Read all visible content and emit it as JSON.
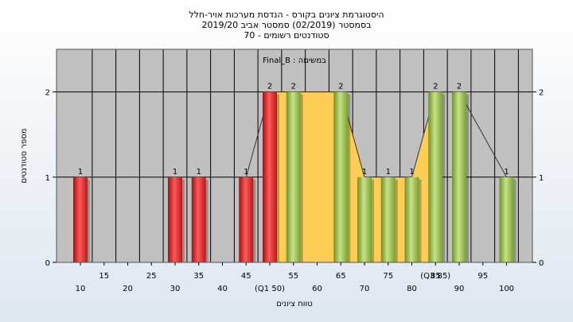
{
  "chart_data": {
    "type": "bar",
    "title_lines": [
      "היסטוגרמת ציונים בקורס - הנדסת מערכות אויר-חלל",
      "בסמסטר  (02/2019)  סמסטר אביב 2019/20",
      "סטודנטים רשומים - 70"
    ],
    "subtitle": "Final_B : במשימה",
    "xlabel": "טווח ציונים",
    "ylabel": "מספר סטודנטים",
    "ylim": [
      0,
      2.5
    ],
    "y_ticks": [
      "0",
      "1",
      "2"
    ],
    "x_ticks_upper": [
      "15",
      "25",
      "35",
      "45",
      "55",
      "65",
      "75",
      "85",
      "95"
    ],
    "x_ticks_lower": [
      "10",
      "20",
      "30",
      "40",
      "50",
      "60",
      "70",
      "80",
      "90",
      "100"
    ],
    "x_tick_annotations": [
      {
        "score": 50,
        "text": "(Q1 50)"
      },
      {
        "score": 85,
        "text": "(Q3 85)"
      }
    ],
    "bars": [
      {
        "score": 10,
        "value": 1,
        "label": "1"
      },
      {
        "score": 30,
        "value": 1,
        "label": "1"
      },
      {
        "score": 35,
        "value": 1,
        "label": "1"
      },
      {
        "score": 45,
        "value": 1,
        "label": "1"
      },
      {
        "score": 50,
        "value": 2,
        "label": "2"
      },
      {
        "score": 55,
        "value": 2,
        "label": "2"
      },
      {
        "score": 65,
        "value": 2,
        "label": "2"
      },
      {
        "score": 70,
        "value": 1,
        "label": "1"
      },
      {
        "score": 75,
        "value": 1,
        "label": "1"
      },
      {
        "score": 80,
        "value": 1,
        "label": "1"
      },
      {
        "score": 85,
        "value": 2,
        "label": "2"
      },
      {
        "score": 90,
        "value": 2,
        "label": "2"
      },
      {
        "score": 100,
        "value": 1,
        "label": "1"
      }
    ],
    "fail_threshold": 55,
    "iqr_band": [
      50,
      85
    ],
    "colors": {
      "fail_bar": "#e02828",
      "pass_bar": "#8cb83c",
      "iqr_fill": "#ffcc55",
      "plot_bg": "#c0c0c0",
      "grid": "#000000"
    }
  }
}
